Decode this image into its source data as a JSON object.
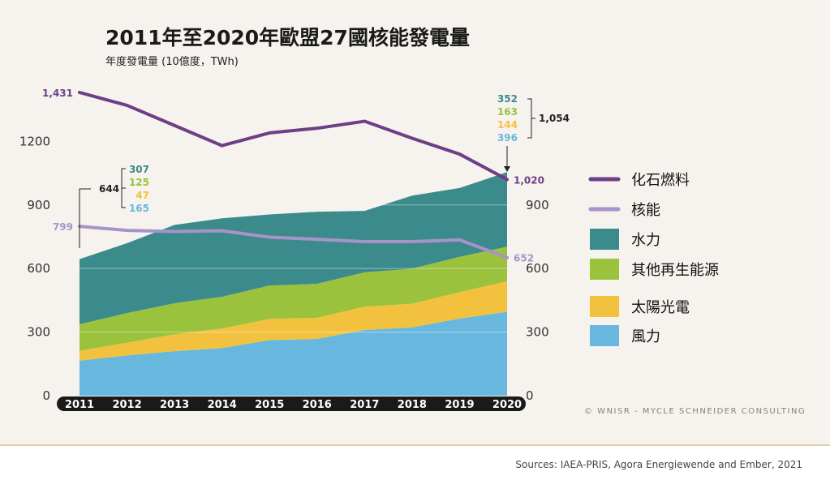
{
  "chart_data": {
    "type": "area",
    "title": "2011年至2020年歐盟27國核能發電量",
    "subtitle": "年度發電量 (10億度，TWh)",
    "x": [
      "2011",
      "2012",
      "2013",
      "2014",
      "2015",
      "2016",
      "2017",
      "2018",
      "2019",
      "2020"
    ],
    "ylim": [
      0,
      1431
    ],
    "yticks": [
      "0",
      "300",
      "600",
      "900",
      "1200"
    ],
    "stacked_series": [
      {
        "name": "風力",
        "color": "#67b7df",
        "values": [
          165,
          190,
          210,
          225,
          262,
          268,
          310,
          322,
          364,
          396
        ]
      },
      {
        "name": "太陽光電",
        "color": "#f2c23e",
        "values": [
          47,
          60,
          80,
          92,
          100,
          100,
          110,
          112,
          125,
          144
        ]
      },
      {
        "name": "其他再生能源",
        "color": "#9ac23c",
        "values": [
          125,
          140,
          146,
          150,
          158,
          160,
          162,
          165,
          166,
          163
        ]
      },
      {
        "name": "水力",
        "color": "#3c8b8c",
        "values": [
          307,
          330,
          370,
          370,
          335,
          340,
          290,
          345,
          325,
          352
        ]
      }
    ],
    "line_series": [
      {
        "name": "化石燃料",
        "color": "#6c3f87",
        "values": [
          1431,
          1370,
          1275,
          1180,
          1240,
          1262,
          1295,
          1215,
          1140,
          1020
        ]
      },
      {
        "name": "核能",
        "color": "#a893c9",
        "values": [
          799,
          780,
          775,
          778,
          748,
          738,
          727,
          727,
          735,
          652
        ]
      }
    ],
    "annotations": {
      "fossil_start": "1,431",
      "fossil_end": "1,020",
      "nuclear_start": "799",
      "nuclear_end": "652",
      "total_2011": "644",
      "breakdown_2011": [
        "307",
        "125",
        "47",
        "165"
      ],
      "total_2020": "1,054",
      "breakdown_2020": [
        "352",
        "163",
        "144",
        "396"
      ]
    },
    "legend_position": "right",
    "legend": [
      {
        "name": "化石燃料",
        "kind": "line",
        "color": "#6c3f87"
      },
      {
        "name": "核能",
        "kind": "line",
        "color": "#a893c9"
      },
      {
        "name": "水力",
        "kind": "box",
        "color": "#3c8b8c"
      },
      {
        "name": "其他再生能源",
        "kind": "box",
        "color": "#9ac23c"
      },
      {
        "name": "太陽光電",
        "kind": "box",
        "color": "#f2c23e"
      },
      {
        "name": "風力",
        "kind": "box",
        "color": "#67b7df"
      }
    ],
    "breakdown_colors": [
      "#3c8b8c",
      "#9ac23c",
      "#f2c23e",
      "#67b7df"
    ],
    "copyright": "© WNISR - MYCLE SCHNEIDER CONSULTING"
  },
  "footer": {
    "sources": "Sources: IAEA-PRIS, Agora Energiewende and Ember, 2021"
  }
}
